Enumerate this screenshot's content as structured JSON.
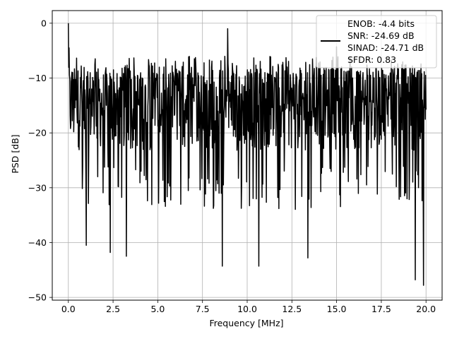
{
  "chart_data": {
    "type": "line",
    "xlabel": "Frequency [MHz]",
    "ylabel": "PSD [dB]",
    "xlim": [
      -0.9,
      20.9
    ],
    "ylim": [
      -50.5,
      2.3
    ],
    "x_ticks": [
      0.0,
      2.5,
      5.0,
      7.5,
      10.0,
      12.5,
      15.0,
      17.5,
      20.0
    ],
    "x_tick_labels": [
      "0.0",
      "2.5",
      "5.0",
      "7.5",
      "10.0",
      "12.5",
      "15.0",
      "17.5",
      "20.0"
    ],
    "y_ticks": [
      0,
      -10,
      -20,
      -30,
      -40,
      -50
    ],
    "y_tick_labels": [
      "0",
      "−10",
      "−20",
      "−30",
      "−40",
      "−50"
    ],
    "grid": true,
    "legend_placement": "top-right",
    "series": [
      {
        "name": "",
        "color": "#000000",
        "x_range": [
          0,
          20
        ],
        "points": 1000,
        "noise_floor_db": [
          -8,
          -26
        ],
        "peaks": [
          {
            "x": 0.0,
            "y": 0
          },
          {
            "x": 0.05,
            "y": -4.5
          },
          {
            "x": 8.9,
            "y": -1
          },
          {
            "x": 15.0,
            "y": -4.3
          }
        ],
        "dips": [
          {
            "x": 1.0,
            "y": -40.5
          },
          {
            "x": 2.35,
            "y": -41.8
          },
          {
            "x": 3.25,
            "y": -42.5
          },
          {
            "x": 8.6,
            "y": -44.3
          },
          {
            "x": 10.65,
            "y": -44.3
          },
          {
            "x": 13.4,
            "y": -42.8
          },
          {
            "x": 19.4,
            "y": -46.8
          },
          {
            "x": 19.85,
            "y": -47.8
          }
        ]
      }
    ],
    "legend_entries": [
      "ENOB: -4.4 bits",
      "SNR: -24.69 dB",
      "SINAD: -24.71 dB",
      "SFDR: 0.83"
    ]
  }
}
